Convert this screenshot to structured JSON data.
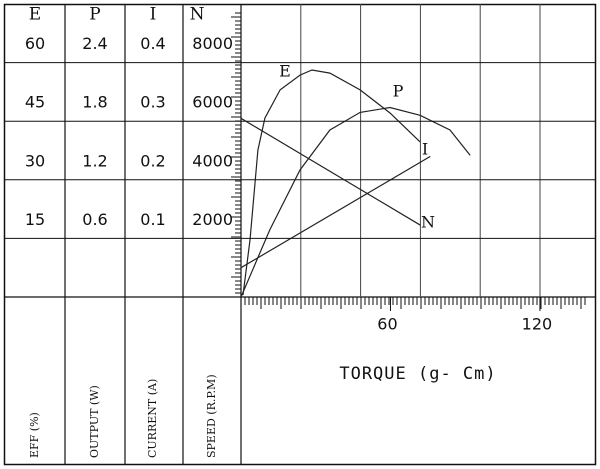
{
  "chart_data": {
    "type": "line",
    "xlabel": "TORQUE (g- Cm)",
    "xlim": [
      0,
      142.5
    ],
    "xticks": [
      60,
      120
    ],
    "grid": true,
    "axes": [
      {
        "header": "E",
        "title": "EFF (%)",
        "ylim": [
          0,
          75
        ],
        "yticks": [
          15,
          30,
          45,
          60
        ],
        "series": {
          "name": "E",
          "color": "#222222",
          "x": [
            0.8,
            3.6,
            6.8,
            9.6,
            15.7,
            23.7,
            28.5,
            35.7,
            47.8,
            59.8,
            71.9
          ],
          "values": [
            0.5,
            14.6,
            37.6,
            45.8,
            53,
            56.8,
            58.1,
            57.3,
            53,
            47.1,
            39.7
          ]
        }
      },
      {
        "header": "P",
        "title": "OUTPUT (W)",
        "ylim": [
          0,
          3
        ],
        "yticks": [
          0.6,
          1.2,
          1.8,
          2.4
        ],
        "series": {
          "name": "P",
          "color": "#222222",
          "x": [
            0,
            11.6,
            23.7,
            35.7,
            47.8,
            59.8,
            71.9,
            83.9,
            92
          ],
          "values": [
            0,
            0.69,
            1.3,
            1.71,
            1.89,
            1.94,
            1.86,
            1.71,
            1.45
          ]
        }
      },
      {
        "header": "I",
        "title": "CURRENT (A)",
        "ylim": [
          0,
          0.5
        ],
        "yticks": [
          0.1,
          0.2,
          0.3,
          0.4
        ],
        "series": {
          "name": "I",
          "color": "#222222",
          "x": [
            0,
            76
          ],
          "values": [
            0.05,
            0.24
          ]
        }
      },
      {
        "header": "N",
        "title": "SPEED (R.P.M)",
        "ylim": [
          0,
          10000
        ],
        "yticks": [
          2000,
          4000,
          6000,
          8000
        ],
        "series": {
          "name": "N",
          "color": "#222222",
          "x": [
            0,
            72
          ],
          "values": [
            6100,
            2450
          ]
        }
      }
    ]
  }
}
